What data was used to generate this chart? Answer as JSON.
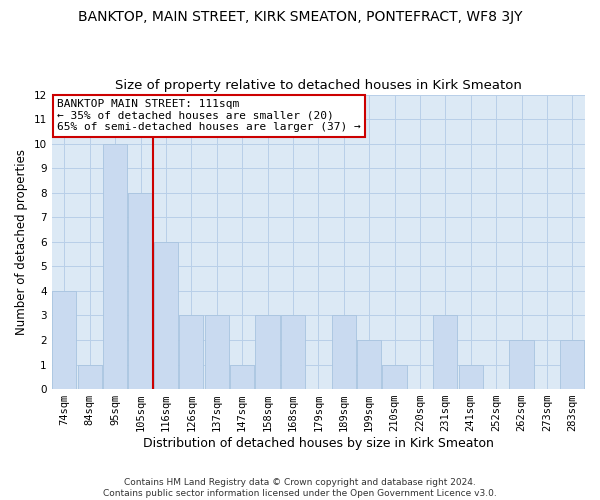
{
  "title": "BANKTOP, MAIN STREET, KIRK SMEATON, PONTEFRACT, WF8 3JY",
  "subtitle": "Size of property relative to detached houses in Kirk Smeaton",
  "xlabel": "Distribution of detached houses by size in Kirk Smeaton",
  "ylabel": "Number of detached properties",
  "categories": [
    "74sqm",
    "84sqm",
    "95sqm",
    "105sqm",
    "116sqm",
    "126sqm",
    "137sqm",
    "147sqm",
    "158sqm",
    "168sqm",
    "179sqm",
    "189sqm",
    "199sqm",
    "210sqm",
    "220sqm",
    "231sqm",
    "241sqm",
    "252sqm",
    "262sqm",
    "273sqm",
    "283sqm"
  ],
  "values": [
    4,
    1,
    10,
    8,
    6,
    3,
    3,
    1,
    3,
    3,
    0,
    3,
    2,
    1,
    0,
    3,
    1,
    0,
    2,
    0,
    2
  ],
  "bar_color": "#c9daf0",
  "bar_edge_color": "#a8c4e0",
  "ylim": [
    0,
    12
  ],
  "yticks": [
    0,
    1,
    2,
    3,
    4,
    5,
    6,
    7,
    8,
    9,
    10,
    11,
    12
  ],
  "property_line_color": "#cc0000",
  "annotation_title": "BANKTOP MAIN STREET: 111sqm",
  "annotation_line1": "← 35% of detached houses are smaller (20)",
  "annotation_line2": "65% of semi-detached houses are larger (37) →",
  "annotation_box_color": "#ffffff",
  "annotation_box_edge": "#cc0000",
  "footer1": "Contains HM Land Registry data © Crown copyright and database right 2024.",
  "footer2": "Contains public sector information licensed under the Open Government Licence v3.0.",
  "background_color": "#ffffff",
  "plot_bg_color": "#dce9f5",
  "grid_color": "#b8cfe8",
  "title_fontsize": 10,
  "subtitle_fontsize": 9.5,
  "xlabel_fontsize": 9,
  "ylabel_fontsize": 8.5,
  "tick_fontsize": 7.5,
  "annotation_fontsize": 8,
  "footer_fontsize": 6.5
}
